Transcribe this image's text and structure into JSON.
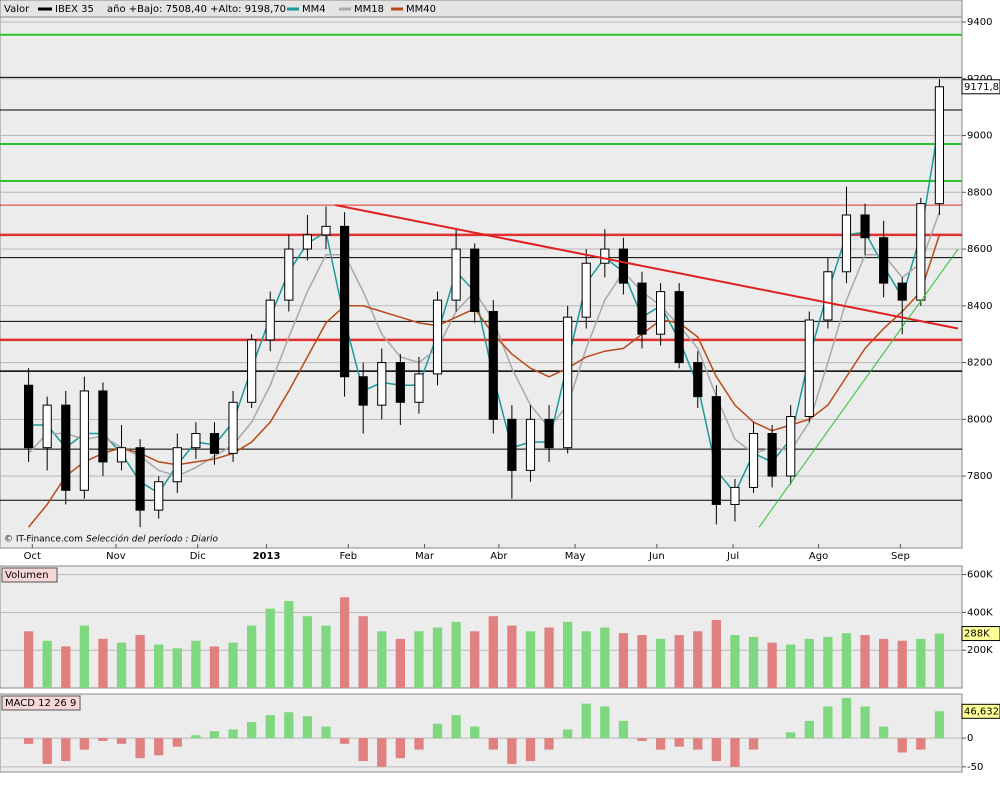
{
  "chart_data": [
    {
      "type": "candlestick",
      "legend_label": "Valor",
      "series_name": "IBEX 35",
      "range_note": "año +Bajo: 7508,40 +Alto: 9198,70",
      "source": "© IT-Finance.com",
      "period": "Selección del período : Diario",
      "x": [
        0,
        1,
        2,
        3,
        4,
        5,
        6,
        7,
        8,
        9,
        10,
        11,
        12,
        13,
        14,
        15,
        16,
        17,
        18,
        19,
        20,
        21,
        22,
        23,
        24,
        25,
        26,
        27,
        28,
        29,
        30,
        31,
        32,
        33,
        34,
        35,
        36,
        37,
        38,
        39,
        40,
        41,
        42,
        43,
        44,
        45,
        46,
        47,
        48,
        49
      ],
      "open": [
        8120,
        7900,
        8050,
        7750,
        8100,
        7850,
        7900,
        7680,
        7780,
        7900,
        7950,
        7880,
        8060,
        8280,
        8420,
        8600,
        8650,
        8680,
        8150,
        8050,
        8200,
        8060,
        8160,
        8420,
        8600,
        8380,
        8000,
        7820,
        8000,
        7900,
        8360,
        8550,
        8600,
        8480,
        8300,
        8450,
        8200,
        8080,
        7700,
        7760,
        7950,
        7800,
        8010,
        8350,
        8520,
        8720,
        8640,
        8480,
        8420,
        8760
      ],
      "high": [
        8180,
        8080,
        8100,
        8150,
        8130,
        7980,
        7930,
        7800,
        7950,
        7990,
        7990,
        8100,
        8300,
        8450,
        8650,
        8720,
        8750,
        8730,
        8200,
        8250,
        8230,
        8220,
        8450,
        8670,
        8620,
        8420,
        8050,
        8050,
        8050,
        8400,
        8600,
        8670,
        8640,
        8520,
        8480,
        8480,
        8240,
        8120,
        7790,
        7990,
        7980,
        8050,
        8380,
        8570,
        8820,
        8760,
        8700,
        8500,
        8780,
        9198.7
      ],
      "low": [
        7850,
        7820,
        7700,
        7720,
        7800,
        7820,
        7620,
        7650,
        7740,
        7860,
        7840,
        7850,
        8040,
        8240,
        8380,
        8560,
        8600,
        8080,
        7950,
        8000,
        7980,
        8020,
        8120,
        8380,
        8340,
        7950,
        7720,
        7780,
        7850,
        7880,
        8320,
        8500,
        8440,
        8250,
        8260,
        8180,
        8040,
        7630,
        7640,
        7740,
        7760,
        7770,
        7990,
        8320,
        8480,
        8580,
        8430,
        8300,
        8400,
        8720
      ],
      "close": [
        7900,
        8050,
        7750,
        8100,
        7850,
        7900,
        7680,
        7780,
        7900,
        7950,
        7880,
        8060,
        8280,
        8420,
        8600,
        8650,
        8680,
        8150,
        8050,
        8200,
        8060,
        8160,
        8420,
        8600,
        8380,
        8000,
        7820,
        8000,
        7900,
        8360,
        8550,
        8600,
        8480,
        8300,
        8450,
        8200,
        8080,
        7700,
        7760,
        7950,
        7800,
        8010,
        8350,
        8520,
        8720,
        8640,
        8480,
        8420,
        8760,
        9171.8
      ],
      "last_value_label": "9171,80",
      "up_color": "#ffffff",
      "down_color": "#000000",
      "overlays": [
        {
          "name": "MM4",
          "color": "#1a9a9a",
          "values": [
            7980,
            7980,
            7900,
            7950,
            7950,
            7880,
            7780,
            7740,
            7840,
            7920,
            7910,
            7990,
            8180,
            8360,
            8520,
            8620,
            8660,
            8350,
            8100,
            8130,
            8120,
            8120,
            8300,
            8520,
            8450,
            8150,
            7900,
            7920,
            7920,
            8200,
            8480,
            8570,
            8520,
            8360,
            8400,
            8280,
            8120,
            7820,
            7740,
            7880,
            7850,
            7930,
            8220,
            8450,
            8650,
            8660,
            8540,
            8430,
            8650,
            9050
          ]
        },
        {
          "name": "MM18",
          "color": "#a8a8a8",
          "values": [
            7880,
            7950,
            7950,
            7930,
            7940,
            7900,
            7870,
            7820,
            7800,
            7830,
            7870,
            7910,
            7990,
            8120,
            8290,
            8450,
            8580,
            8580,
            8450,
            8300,
            8220,
            8200,
            8250,
            8380,
            8450,
            8350,
            8180,
            8050,
            7970,
            8050,
            8250,
            8420,
            8520,
            8450,
            8400,
            8330,
            8250,
            8080,
            7930,
            7880,
            7900,
            7890,
            7990,
            8200,
            8420,
            8580,
            8580,
            8500,
            8550,
            8730
          ]
        },
        {
          "name": "MM40",
          "color": "#b84a1a",
          "values": [
            7620,
            7700,
            7800,
            7850,
            7880,
            7900,
            7880,
            7850,
            7840,
            7850,
            7860,
            7880,
            7920,
            7990,
            8100,
            8220,
            8340,
            8400,
            8400,
            8380,
            8360,
            8340,
            8330,
            8360,
            8390,
            8300,
            8230,
            8180,
            8150,
            8180,
            8220,
            8240,
            8250,
            8300,
            8350,
            8340,
            8290,
            8150,
            8050,
            7990,
            7960,
            7980,
            8000,
            8050,
            8150,
            8250,
            8320,
            8380,
            8450,
            8650
          ]
        }
      ],
      "hlines": [
        {
          "value": 9205,
          "color": "#000000",
          "width": 1
        },
        {
          "value": 9090,
          "color": "#000000",
          "width": 1
        },
        {
          "value": 8570,
          "color": "#000000",
          "width": 1
        },
        {
          "value": 8345,
          "color": "#000000",
          "width": 1
        },
        {
          "value": 8170,
          "color": "#000000",
          "width": 1.5
        },
        {
          "value": 7895,
          "color": "#000000",
          "width": 1
        },
        {
          "value": 7715,
          "color": "#000000",
          "width": 1
        },
        {
          "value": 9355,
          "color": "#2ec02e",
          "width": 2
        },
        {
          "value": 8970,
          "color": "#2ec02e",
          "width": 2
        },
        {
          "value": 8840,
          "color": "#2ec02e",
          "width": 2
        },
        {
          "value": 8755,
          "color": "#e03030",
          "width": 1
        },
        {
          "value": 8650,
          "color": "#e03030",
          "width": 2.5
        },
        {
          "value": 8280,
          "color": "#e03030",
          "width": 2.5
        }
      ],
      "trendlines": [
        {
          "x": [
            16.5,
            50
          ],
          "y": [
            8755,
            8320
          ],
          "color": "#e02020",
          "width": 2
        },
        {
          "x": [
            39.3,
            50
          ],
          "y": [
            7620,
            8600
          ],
          "color": "#2ec02e",
          "width": 1
        }
      ],
      "xlim": [
        -1,
        50
      ],
      "xticks": [
        {
          "value": 0.2,
          "label": "Oct"
        },
        {
          "value": 4.7,
          "label": "Nov"
        },
        {
          "value": 9.1,
          "label": "Dic"
        },
        {
          "value": 12.8,
          "label": "2013"
        },
        {
          "value": 17.2,
          "label": "Feb"
        },
        {
          "value": 21.3,
          "label": "Mar"
        },
        {
          "value": 25.3,
          "label": "Abr"
        },
        {
          "value": 29.4,
          "label": "May"
        },
        {
          "value": 33.8,
          "label": "Jun"
        },
        {
          "value": 37.9,
          "label": "Jul"
        },
        {
          "value": 42.5,
          "label": "Ago"
        },
        {
          "value": 46.9,
          "label": "Sep"
        }
      ],
      "ylim": [
        7610,
        9460
      ],
      "yticks": [
        7800,
        8000,
        8200,
        8400,
        8600,
        8800,
        9000,
        9200,
        9400
      ]
    },
    {
      "type": "bar",
      "title": "Volumen",
      "x": [
        0,
        1,
        2,
        3,
        4,
        5,
        6,
        7,
        8,
        9,
        10,
        11,
        12,
        13,
        14,
        15,
        16,
        17,
        18,
        19,
        20,
        21,
        22,
        23,
        24,
        25,
        26,
        27,
        28,
        29,
        30,
        31,
        32,
        33,
        34,
        35,
        36,
        37,
        38,
        39,
        40,
        41,
        42,
        43,
        44,
        45,
        46,
        47,
        48,
        49
      ],
      "values": [
        300000,
        250000,
        220000,
        330000,
        260000,
        240000,
        280000,
        230000,
        210000,
        250000,
        220000,
        240000,
        330000,
        420000,
        460000,
        380000,
        330000,
        480000,
        380000,
        300000,
        260000,
        300000,
        320000,
        350000,
        300000,
        380000,
        330000,
        300000,
        320000,
        350000,
        300000,
        320000,
        290000,
        280000,
        260000,
        280000,
        300000,
        360000,
        280000,
        270000,
        240000,
        230000,
        260000,
        270000,
        290000,
        280000,
        260000,
        250000,
        260000,
        288000
      ],
      "last_value_label": "288K",
      "up_color": "#7fd87f",
      "down_color": "#e08080",
      "xlim": [
        -1,
        50
      ],
      "ylim": [
        0,
        640000
      ],
      "yticks": [
        {
          "value": 200000,
          "label": "200K"
        },
        {
          "value": 400000,
          "label": "400K"
        },
        {
          "value": 600000,
          "label": "600K"
        }
      ]
    },
    {
      "type": "bar",
      "title": "MACD 12 26 9",
      "x": [
        0,
        1,
        2,
        3,
        4,
        5,
        6,
        7,
        8,
        9,
        10,
        11,
        12,
        13,
        14,
        15,
        16,
        17,
        18,
        19,
        20,
        21,
        22,
        23,
        24,
        25,
        26,
        27,
        28,
        29,
        30,
        31,
        32,
        33,
        34,
        35,
        36,
        37,
        38,
        39,
        40,
        41,
        42,
        43,
        44,
        45,
        46,
        47,
        48,
        49
      ],
      "values": [
        -10,
        -45,
        -40,
        -20,
        -5,
        -10,
        -35,
        -30,
        -15,
        5,
        12,
        15,
        28,
        40,
        45,
        38,
        20,
        -10,
        -40,
        -50,
        -35,
        -20,
        25,
        40,
        20,
        -20,
        -45,
        -40,
        -20,
        15,
        60,
        55,
        30,
        -5,
        -20,
        -15,
        -20,
        -40,
        -50,
        -20,
        0,
        10,
        30,
        55,
        70,
        55,
        20,
        -25,
        -20,
        46.6326
      ],
      "last_value_label": "46,6326",
      "pos_color": "#7fd87f",
      "neg_color": "#e08080",
      "xlim": [
        -1,
        50
      ],
      "ylim": [
        -59,
        75
      ],
      "yticks": [
        -50,
        0
      ]
    }
  ]
}
